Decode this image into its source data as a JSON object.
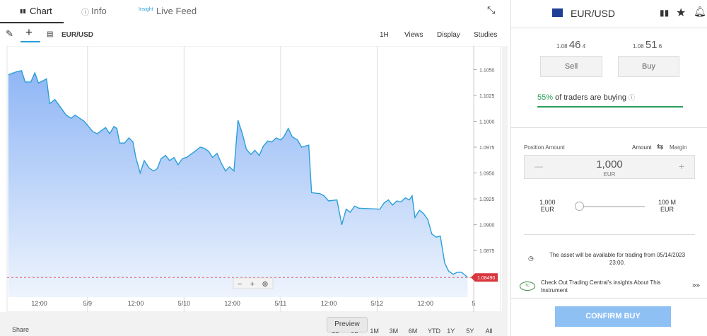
{
  "tabs": {
    "chart": "Chart",
    "info": "Info",
    "insight": "Insight",
    "live_feed": "Live Feed"
  },
  "toolbar": {
    "symbol": "EUR/USD",
    "menus": [
      "1H",
      "Views",
      "Display",
      "Studies"
    ]
  },
  "chart_data": {
    "type": "line",
    "color": "#2a9fd8",
    "grid": true,
    "x": [
      4.3,
      6.4,
      7.6,
      8.5,
      9.9,
      10.9,
      11.8,
      13.8,
      14.6,
      15.9,
      18.7,
      19.9,
      20.9,
      23.2,
      25.3,
      26.4,
      28.5,
      29.5,
      30.6,
      31.3,
      32.0,
      33.2,
      34.3,
      35.3,
      36.0,
      37.1,
      38.1,
      39.3,
      40.4,
      41.3,
      42.3,
      43.4,
      44.4,
      45.5,
      46.5,
      47.6,
      48.6,
      50.7,
      52.0,
      53.0,
      54.1,
      55.1,
      56.2,
      57.2,
      58.3,
      59.3,
      60.4,
      61.4,
      62.5,
      63.5,
      64.6,
      65.6,
      66.7,
      67.7,
      68.8,
      69.8,
      70.9,
      72.0,
      72.8,
      73.9,
      74.9,
      76.2,
      77.2,
      79.0,
      79.7,
      81.8,
      82.8,
      83.9,
      86.0,
      87.2,
      88.3,
      89.3,
      90.4,
      91.4,
      96.7,
      97.7,
      98.8,
      99.8,
      100.9,
      101.9,
      103.0,
      104.0,
      104.7,
      105.4,
      106.5,
      107.5,
      108.6,
      109.6,
      110.7,
      111.7,
      112.8,
      113.8,
      114.9,
      115.9,
      117.0,
      118.5
    ],
    "values": [
      1.1045,
      1.1048,
      1.1049,
      1.1038,
      1.1038,
      1.1047,
      1.1037,
      1.1041,
      1.1017,
      1.1021,
      1.1006,
      1.1003,
      1.1006,
      1.1,
      1.099,
      1.0988,
      1.0994,
      1.0988,
      1.0995,
      1.0993,
      1.0979,
      1.0979,
      1.0984,
      1.098,
      1.0965,
      1.095,
      1.0962,
      1.0955,
      1.0952,
      1.0954,
      1.0964,
      1.0967,
      1.0962,
      1.0965,
      1.0958,
      1.0964,
      1.0965,
      1.0971,
      1.0975,
      1.0974,
      1.0971,
      1.0965,
      1.0969,
      1.096,
      1.0952,
      1.0956,
      1.0952,
      1.1001,
      1.0988,
      1.0973,
      1.0968,
      1.0972,
      1.0967,
      1.0976,
      1.0981,
      1.098,
      1.0984,
      1.0982,
      1.0985,
      1.0993,
      1.0985,
      1.0982,
      1.0975,
      1.0977,
      1.0931,
      1.093,
      1.0928,
      1.0923,
      1.0924,
      1.09,
      1.0915,
      1.0912,
      1.0918,
      1.0916,
      1.0915,
      1.0921,
      1.0924,
      1.0919,
      1.0923,
      1.0922,
      1.0926,
      1.0924,
      1.0928,
      1.0907,
      1.0914,
      1.0911,
      1.0905,
      1.0891,
      1.0888,
      1.0889,
      1.0863,
      1.0855,
      1.0852,
      1.0854,
      1.0854,
      1.0849
    ],
    "xlim": [
      4,
      120
    ],
    "ylim": [
      1.083,
      1.1066
    ],
    "xticks": [
      {
        "value": 12,
        "label": "12:00"
      },
      {
        "value": 24,
        "label": "5/9"
      },
      {
        "value": 36,
        "label": "12:00"
      },
      {
        "value": 48,
        "label": "5/10"
      },
      {
        "value": 60,
        "label": "12:00"
      },
      {
        "value": 72,
        "label": "5/11"
      },
      {
        "value": 84,
        "label": "12:00"
      },
      {
        "value": 96,
        "label": "5/12"
      },
      {
        "value": 108,
        "label": "12:00"
      },
      {
        "value": 120,
        "label": "5"
      }
    ],
    "yticks": [
      {
        "value": 1.105,
        "label": "1.1050"
      },
      1.1025,
      {
        "value": 1.1,
        "label": "1.1000"
      },
      1.0975,
      {
        "value": 1.095,
        "label": "1.0950"
      },
      1.0925,
      {
        "value": 1.09,
        "label": "1.0900"
      },
      1.0875
    ],
    "last_price": {
      "value": 1.0849,
      "label": "1.08490"
    }
  },
  "bottom": {
    "share": "Share",
    "ranges": [
      "1D",
      "5D",
      "1M",
      "3M",
      "6M",
      "YTD",
      "1Y",
      "5Y",
      "All"
    ],
    "preview": "Preview"
  },
  "panel": {
    "pair": "EUR/USD",
    "sell": {
      "big_figure": "1.08",
      "pips": "46",
      "fraction": "4",
      "button": "Sell"
    },
    "buy": {
      "big_figure": "1.08",
      "pips": "51",
      "fraction": "6",
      "button": "Buy"
    },
    "sentiment": {
      "percent": "55%",
      "text": "of traders are buying"
    },
    "position": {
      "label": "Position Amount",
      "amount": "Amount",
      "margin": "Margin",
      "minus": "—",
      "value": "1,000",
      "unit": "EUR",
      "plus": "+"
    },
    "slider": {
      "min": "1,000",
      "min_unit": "EUR",
      "max": "100 M",
      "max_unit": "EUR"
    },
    "notice": "The asset will be available for trading from 05/14/2023 23:00.",
    "insights": "Check Out Trading Central's insights About This Instrument",
    "confirm": "CONFIRM BUY"
  }
}
